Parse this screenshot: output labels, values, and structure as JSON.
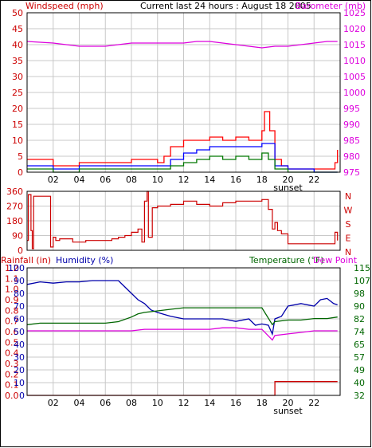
{
  "header": {
    "left_label": "Windspeed (mph)",
    "title": "Current last 24 hours : August 18 2005",
    "right_label": "Barometer (mb)"
  },
  "bottom_header": {
    "rain_label": "Rainfall (in)",
    "humidity_label": "Humidity (%)",
    "temp_label": "Temperature (°F)",
    "dew_label": "Dew Point"
  },
  "colors": {
    "wind_axis": "#cc0000",
    "baro": "#dd00dd",
    "temp": "#006600",
    "humidity": "#0000aa",
    "dew": "#dd00dd",
    "rain": "#cc0000",
    "gust": "#ff0000",
    "avg": "#0000ff",
    "low": "#007700",
    "dir": "#cc0000"
  },
  "time_ticks": [
    "02",
    "04",
    "06",
    "08",
    "10",
    "12",
    "14",
    "16",
    "18",
    "20",
    "22"
  ],
  "sunset_label": "sunset",
  "chart_data": [
    {
      "type": "line",
      "panel": "wind",
      "title": "Current last 24 hours : August 18 2005",
      "x_unit": "hour of day",
      "ylabel": "Windspeed (mph)",
      "y2label": "Barometer (mb)",
      "ylim": [
        0,
        50
      ],
      "y_ticks": [
        "0",
        "5",
        "10",
        "15",
        "20",
        "25",
        "30",
        "35",
        "40",
        "45",
        "50"
      ],
      "y2lim": [
        975,
        1025
      ],
      "y2_ticks": [
        "975",
        "980",
        "985",
        "990",
        "995",
        "1000",
        "1005",
        "1010",
        "1015",
        "1020",
        "1025"
      ],
      "grid": true,
      "series": [
        {
          "name": "Barometer (mb)",
          "axis": "right",
          "x": [
            0,
            2,
            3,
            4,
            5,
            6,
            7,
            8,
            9,
            10,
            11,
            12,
            13,
            14,
            15,
            16,
            17,
            18,
            19,
            20,
            21,
            22,
            23,
            23.8
          ],
          "values": [
            1016,
            1015.5,
            1015,
            1014.5,
            1014.5,
            1014.5,
            1015,
            1015.5,
            1015.5,
            1015.5,
            1015.5,
            1015.5,
            1016,
            1016,
            1015.5,
            1015,
            1014.5,
            1014,
            1014.5,
            1014.5,
            1015,
            1015.5,
            1016,
            1016
          ]
        },
        {
          "name": "gust",
          "axis": "left",
          "x": [
            0,
            2,
            4,
            6,
            8,
            10,
            10.5,
            11,
            12,
            13,
            14,
            15,
            16,
            17,
            18,
            18.2,
            18.6,
            19,
            19.5,
            20,
            21,
            22,
            23,
            23.6,
            23.8
          ],
          "values": [
            4,
            2,
            3,
            3,
            4,
            3,
            5,
            8,
            10,
            10,
            11,
            10,
            11,
            10,
            13,
            19,
            13,
            4,
            2,
            1,
            1,
            1,
            1,
            3,
            7
          ]
        },
        {
          "name": "average",
          "axis": "left",
          "x": [
            0,
            2,
            4,
            6,
            8,
            10,
            11,
            12,
            13,
            14,
            15,
            16,
            17,
            18,
            18.5,
            19,
            20,
            22,
            23.8
          ],
          "values": [
            2,
            1,
            2,
            2,
            2,
            2,
            4,
            6,
            7,
            8,
            8,
            8,
            8,
            9,
            9,
            2,
            1,
            0,
            0
          ]
        },
        {
          "name": "low",
          "axis": "left",
          "x": [
            0,
            2,
            4,
            6,
            8,
            10,
            11,
            12,
            13,
            14,
            15,
            16,
            17,
            18,
            18.5,
            19,
            20,
            22,
            23.8
          ],
          "values": [
            1,
            0,
            1,
            1,
            1,
            1,
            2,
            3,
            4,
            5,
            4,
            5,
            4,
            6,
            4,
            1,
            0,
            0,
            0
          ]
        }
      ]
    },
    {
      "type": "line",
      "panel": "direction",
      "ylim": [
        0,
        360
      ],
      "y_ticks": [
        "0",
        "90",
        "180",
        "270",
        "360"
      ],
      "y2_ticks": [
        "N",
        "E",
        "S",
        "W",
        "N"
      ],
      "grid": true,
      "series": [
        {
          "name": "wind direction",
          "x": [
            0,
            0.1,
            0.3,
            0.4,
            0.5,
            1.7,
            1.8,
            2.0,
            2.2,
            2.5,
            3.5,
            4.5,
            5.5,
            6.5,
            7,
            7.5,
            8,
            8.5,
            8.8,
            9,
            9.2,
            9.3,
            9.6,
            10,
            11,
            12,
            13,
            14,
            15,
            16,
            17,
            18,
            18.5,
            18.8,
            19,
            19.2,
            19.5,
            20,
            21,
            22,
            23,
            23.4,
            23.6,
            23.8
          ],
          "values": [
            60,
            340,
            120,
            10,
            330,
            330,
            20,
            80,
            60,
            70,
            50,
            60,
            60,
            70,
            80,
            90,
            110,
            130,
            50,
            300,
            360,
            80,
            260,
            270,
            280,
            300,
            280,
            270,
            290,
            300,
            300,
            310,
            250,
            130,
            170,
            120,
            100,
            40,
            40,
            40,
            40,
            40,
            110,
            60
          ]
        }
      ]
    },
    {
      "type": "line",
      "panel": "humidity_temp",
      "ylabel": "Humidity (%)",
      "ylim": [
        0,
        100
      ],
      "y_ticks": [
        "0",
        "10",
        "20",
        "30",
        "40",
        "50",
        "60",
        "70",
        "80",
        "90",
        "100"
      ],
      "rain_ticks": [
        "0.0",
        "0.1",
        "0.2",
        "0.3",
        "0.4",
        "0.5",
        "0.6",
        "0.7",
        "0.8",
        "0.9",
        "1.0",
        "1.1",
        "1.2"
      ],
      "rain_ylim": [
        0,
        1.2
      ],
      "y2label": "Temperature (°F)",
      "y2lim": [
        32,
        115
      ],
      "y2_ticks": [
        "32",
        "40",
        "49",
        "57",
        "65",
        "74",
        "82",
        "90",
        "98",
        "107",
        "115"
      ],
      "grid": true,
      "series": [
        {
          "name": "Humidity (%)",
          "axis": "humidity",
          "x": [
            0,
            1,
            2,
            3,
            4,
            5,
            6,
            7,
            7.5,
            8,
            8.5,
            9,
            9.5,
            10,
            11,
            12,
            13,
            14,
            15,
            16,
            17,
            17.5,
            18,
            18.5,
            18.8,
            19,
            19.5,
            20,
            21,
            22,
            22.5,
            23,
            23.5,
            23.8
          ],
          "values": [
            87,
            89,
            88,
            89,
            89,
            90,
            90,
            90,
            85,
            80,
            75,
            72,
            67,
            65,
            62,
            60,
            60,
            60,
            60,
            58,
            60,
            55,
            56,
            55,
            48,
            60,
            62,
            70,
            72,
            70,
            75,
            76,
            72,
            71
          ]
        },
        {
          "name": "Temperature (°F)",
          "axis": "temp",
          "x": [
            0,
            1,
            2,
            3,
            4,
            5,
            6,
            7,
            8,
            8.5,
            9,
            10,
            11,
            12,
            13,
            14,
            15,
            16,
            17,
            18,
            18.8,
            19,
            20,
            21,
            22,
            23,
            23.8
          ],
          "values": [
            78,
            79,
            79,
            79,
            79,
            79,
            79,
            80,
            83,
            85,
            86,
            87,
            88,
            89,
            89,
            89,
            89,
            89,
            89,
            89,
            78,
            80,
            81,
            81,
            82,
            82,
            83
          ]
        },
        {
          "name": "Dew Point",
          "axis": "temp",
          "x": [
            0,
            1,
            2,
            3,
            4,
            5,
            6,
            7,
            8,
            9,
            10,
            11,
            12,
            13,
            14,
            15,
            16,
            17,
            18,
            18.8,
            19,
            20,
            21,
            22,
            23,
            23.8
          ],
          "values": [
            74,
            74,
            74,
            74,
            74,
            74,
            74,
            74,
            74,
            75,
            75,
            75,
            75,
            75,
            75,
            76,
            76,
            75,
            75,
            68,
            71,
            72,
            73,
            74,
            74,
            74
          ]
        },
        {
          "name": "Rainfall (in)",
          "axis": "rain",
          "x": [
            0,
            18.9,
            19.0,
            23.8
          ],
          "values": [
            0.0,
            0.0,
            0.13,
            0.13
          ]
        }
      ]
    }
  ]
}
